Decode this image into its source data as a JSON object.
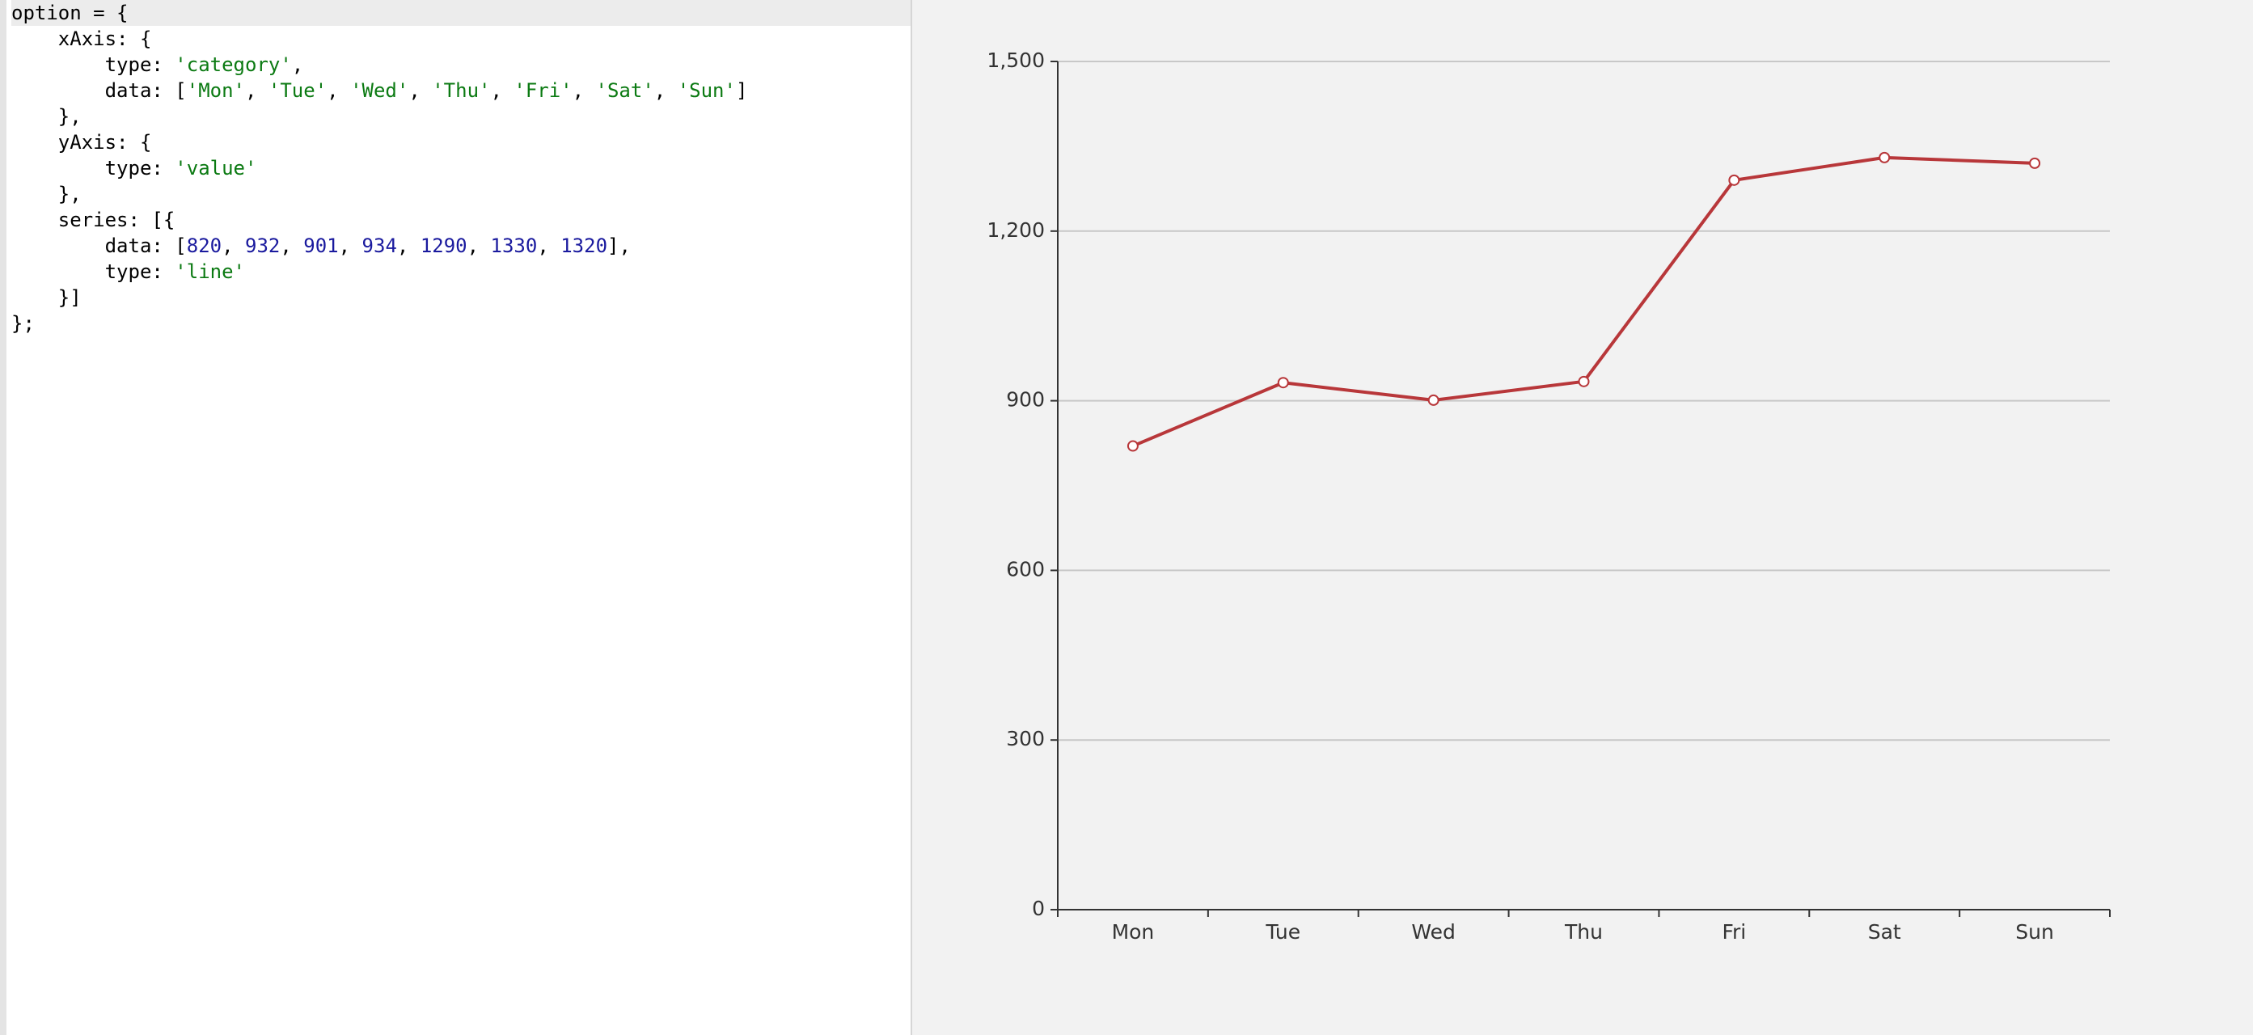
{
  "editor": {
    "lines": [
      [
        {
          "text": "option = {",
          "color": "#000000"
        }
      ],
      [
        {
          "text": "    xAxis: {",
          "color": "#000000"
        }
      ],
      [
        {
          "text": "        type: ",
          "color": "#000000"
        },
        {
          "text": "'category'",
          "color": "#0b7a12"
        },
        {
          "text": ",",
          "color": "#000000"
        }
      ],
      [
        {
          "text": "        data: [",
          "color": "#000000"
        },
        {
          "text": "'Mon'",
          "color": "#0b7a12"
        },
        {
          "text": ", ",
          "color": "#000000"
        },
        {
          "text": "'Tue'",
          "color": "#0b7a12"
        },
        {
          "text": ", ",
          "color": "#000000"
        },
        {
          "text": "'Wed'",
          "color": "#0b7a12"
        },
        {
          "text": ", ",
          "color": "#000000"
        },
        {
          "text": "'Thu'",
          "color": "#0b7a12"
        },
        {
          "text": ", ",
          "color": "#000000"
        },
        {
          "text": "'Fri'",
          "color": "#0b7a12"
        },
        {
          "text": ", ",
          "color": "#000000"
        },
        {
          "text": "'Sat'",
          "color": "#0b7a12"
        },
        {
          "text": ", ",
          "color": "#000000"
        },
        {
          "text": "'Sun'",
          "color": "#0b7a12"
        },
        {
          "text": "]",
          "color": "#000000"
        }
      ],
      [
        {
          "text": "    },",
          "color": "#000000"
        }
      ],
      [
        {
          "text": "    yAxis: {",
          "color": "#000000"
        }
      ],
      [
        {
          "text": "        type: ",
          "color": "#000000"
        },
        {
          "text": "'value'",
          "color": "#0b7a12"
        }
      ],
      [
        {
          "text": "    },",
          "color": "#000000"
        }
      ],
      [
        {
          "text": "    series: [{",
          "color": "#000000"
        }
      ],
      [
        {
          "text": "        data: [",
          "color": "#000000"
        },
        {
          "text": "820",
          "color": "#1a1a9e"
        },
        {
          "text": ", ",
          "color": "#000000"
        },
        {
          "text": "932",
          "color": "#1a1a9e"
        },
        {
          "text": ", ",
          "color": "#000000"
        },
        {
          "text": "901",
          "color": "#1a1a9e"
        },
        {
          "text": ", ",
          "color": "#000000"
        },
        {
          "text": "934",
          "color": "#1a1a9e"
        },
        {
          "text": ", ",
          "color": "#000000"
        },
        {
          "text": "1290",
          "color": "#1a1a9e"
        },
        {
          "text": ", ",
          "color": "#000000"
        },
        {
          "text": "1330",
          "color": "#1a1a9e"
        },
        {
          "text": ", ",
          "color": "#000000"
        },
        {
          "text": "1320",
          "color": "#1a1a9e"
        },
        {
          "text": "],",
          "color": "#000000"
        }
      ],
      [
        {
          "text": "        type: ",
          "color": "#000000"
        },
        {
          "text": "'line'",
          "color": "#0b7a12"
        }
      ],
      [
        {
          "text": "    }]",
          "color": "#000000"
        }
      ],
      [
        {
          "text": "};",
          "color": "#000000"
        }
      ]
    ]
  },
  "chart_data": {
    "type": "line",
    "categories": [
      "Mon",
      "Tue",
      "Wed",
      "Thu",
      "Fri",
      "Sat",
      "Sun"
    ],
    "series": [
      {
        "color": "#b8373a",
        "values": [
          820,
          932,
          901,
          934,
          1290,
          1330,
          1320
        ]
      }
    ],
    "ylim": [
      0,
      1500
    ],
    "yticks": [
      0,
      300,
      600,
      900,
      {
        "value": 1200,
        "label": "1,200"
      },
      {
        "value": 1500,
        "label": "1,500"
      }
    ],
    "grid": true
  }
}
